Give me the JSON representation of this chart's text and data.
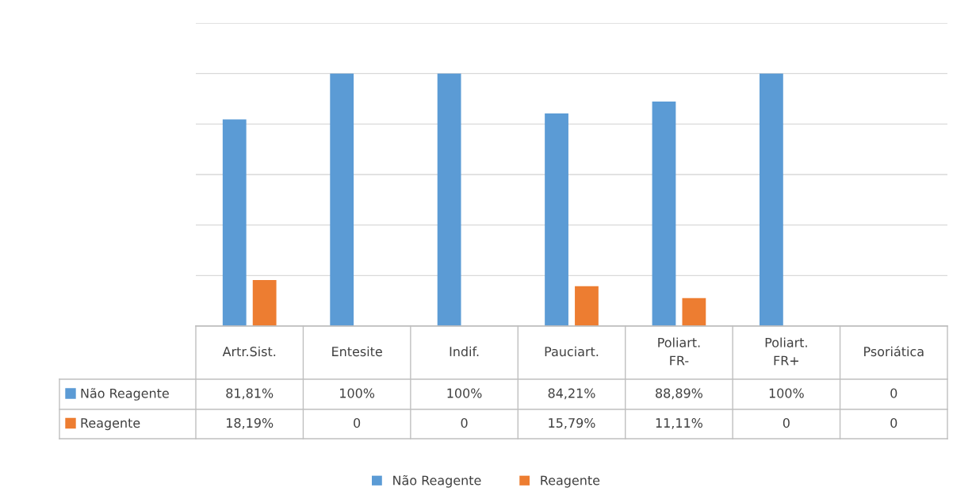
{
  "chart_data": {
    "type": "bar",
    "categories": [
      "Artr.Sist.",
      "Entesite",
      "Indif.",
      "Pauciart.",
      "Poliart. FR-",
      "Poliart. FR+",
      "Psoriática"
    ],
    "series": [
      {
        "name": "Não Reagente",
        "color": "#5b9bd5",
        "values": [
          81.81,
          100,
          100,
          84.21,
          88.89,
          100,
          0
        ],
        "value_labels": [
          "81,81%",
          "100%",
          "100%",
          "84,21%",
          "88,89%",
          "100%",
          "0"
        ]
      },
      {
        "name": "Reagente",
        "color": "#ed7d31",
        "values": [
          18.19,
          0,
          0,
          15.79,
          11.11,
          0,
          0
        ],
        "value_labels": [
          "18,19%",
          "0",
          "0",
          "15,79%",
          "11,11%",
          "0",
          "0"
        ]
      }
    ],
    "ylim": [
      0,
      120
    ],
    "yticks": [
      {
        "value": 0,
        "label": null
      },
      {
        "value": 20,
        "label": null
      },
      {
        "value": 40,
        "label": null
      },
      {
        "value": 60,
        "label": null
      },
      {
        "value": 80,
        "label": null
      },
      {
        "value": 100,
        "label": null
      },
      {
        "value": 120,
        "label": null
      }
    ],
    "tick_labels": "x",
    "grid": "y",
    "legend": "bottom"
  }
}
